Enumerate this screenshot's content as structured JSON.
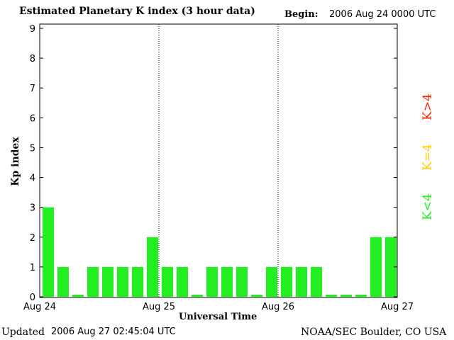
{
  "header": {
    "title": "Estimated Planetary K index (3 hour data)",
    "begin_label": "Begin:",
    "begin_value": "2006 Aug 24 0000 UTC"
  },
  "footer": {
    "updated_label": "Updated",
    "updated_value": "2006 Aug 27 02:45:04 UTC",
    "credit": "NOAA/SEC Boulder, CO USA"
  },
  "legend": {
    "items": [
      {
        "label": "K<4",
        "color": "#22ee22"
      },
      {
        "label": "K=4",
        "color": "#ffcc00"
      },
      {
        "label": "K>4",
        "color": "#ff2200"
      }
    ]
  },
  "chart_data": {
    "type": "bar",
    "title": "Estimated Planetary K index (3 hour data)",
    "xlabel": "Universal Time",
    "ylabel": "Kp index",
    "ylim": [
      0,
      9
    ],
    "yticks": [
      "0",
      "1",
      "2",
      "3",
      "4",
      "5",
      "6",
      "7",
      "8",
      "9"
    ],
    "xticks": [
      "Aug 24",
      "Aug 25",
      "Aug 26",
      "Aug 27"
    ],
    "day_dividers": [
      "Aug 25",
      "Aug 26"
    ],
    "bar_color": "#22ee22",
    "interval_hours": 3,
    "values": [
      3,
      1,
      0,
      1,
      1,
      1,
      1,
      2,
      1,
      1,
      0,
      1,
      1,
      1,
      0,
      1,
      1,
      1,
      1,
      0,
      0,
      0,
      2,
      2
    ]
  }
}
